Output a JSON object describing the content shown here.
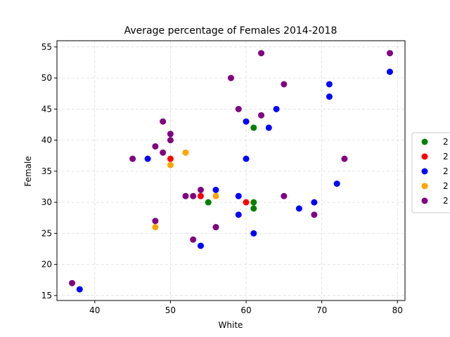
{
  "chart_data": {
    "type": "scatter",
    "title": "Average percentage of Females 2014-2018",
    "xlabel": "White",
    "ylabel": "Female",
    "xlim": [
      35,
      81
    ],
    "ylim": [
      14.2,
      56
    ],
    "xticks": [
      40,
      50,
      60,
      70,
      80
    ],
    "yticks": [
      15,
      20,
      25,
      30,
      35,
      40,
      45,
      50,
      55
    ],
    "grid": true,
    "legend_position": "right",
    "series": [
      {
        "name": "2",
        "color": "#008000",
        "points": [
          [
            55,
            30
          ],
          [
            61,
            42
          ],
          [
            61,
            30
          ],
          [
            61,
            29
          ]
        ]
      },
      {
        "name": "2",
        "color": "#ff0000",
        "points": [
          [
            50,
            37
          ],
          [
            54,
            31
          ],
          [
            60,
            30
          ]
        ]
      },
      {
        "name": "2",
        "color": "#0000ff",
        "points": [
          [
            38,
            16
          ],
          [
            47,
            37
          ],
          [
            54,
            23
          ],
          [
            56,
            32
          ],
          [
            59,
            31
          ],
          [
            59,
            28
          ],
          [
            60,
            43
          ],
          [
            60,
            37
          ],
          [
            61,
            25
          ],
          [
            63,
            42
          ],
          [
            64,
            45
          ],
          [
            67,
            29
          ],
          [
            69,
            30
          ],
          [
            71,
            49
          ],
          [
            71,
            47
          ],
          [
            72,
            33
          ],
          [
            79,
            51
          ]
        ]
      },
      {
        "name": "2",
        "color": "#ffa500",
        "points": [
          [
            48,
            26
          ],
          [
            50,
            36
          ],
          [
            52,
            38
          ],
          [
            56,
            31
          ]
        ]
      },
      {
        "name": "2",
        "color": "#800080",
        "points": [
          [
            37,
            17
          ],
          [
            45,
            37
          ],
          [
            48,
            39
          ],
          [
            48,
            27
          ],
          [
            49,
            43
          ],
          [
            49,
            38
          ],
          [
            50,
            41
          ],
          [
            50,
            40
          ],
          [
            52,
            31
          ],
          [
            53,
            31
          ],
          [
            53,
            24
          ],
          [
            54,
            32
          ],
          [
            56,
            26
          ],
          [
            58,
            50
          ],
          [
            59,
            45
          ],
          [
            62,
            54
          ],
          [
            62,
            44
          ],
          [
            65,
            49
          ],
          [
            65,
            31
          ],
          [
            69,
            28
          ],
          [
            73,
            37
          ],
          [
            79,
            54
          ]
        ]
      }
    ]
  }
}
